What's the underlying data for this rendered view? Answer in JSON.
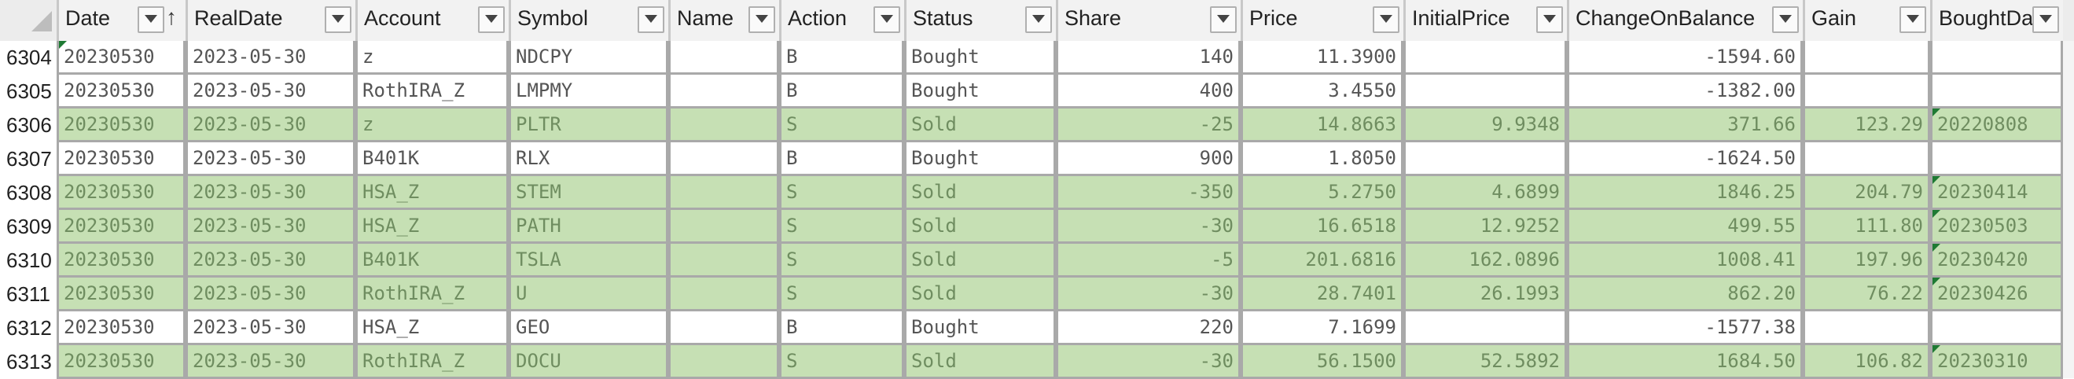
{
  "columns": [
    {
      "label": "Date",
      "sorted": "↑"
    },
    {
      "label": "RealDate"
    },
    {
      "label": "Account"
    },
    {
      "label": "Symbol"
    },
    {
      "label": "Name"
    },
    {
      "label": "Action"
    },
    {
      "label": "Status"
    },
    {
      "label": "Share"
    },
    {
      "label": "Price"
    },
    {
      "label": "InitialPrice"
    },
    {
      "label": "ChangeOnBalance"
    },
    {
      "label": "Gain"
    },
    {
      "label": "BoughtDat"
    }
  ],
  "rows": [
    {
      "rownum": "6304",
      "status_color": "bought",
      "cells": [
        "20230530",
        "2023-05-30",
        "z",
        "NDCPY",
        "",
        "B",
        "Bought",
        "140",
        "11.3900",
        "",
        "-1594.60",
        "",
        ""
      ]
    },
    {
      "rownum": "6305",
      "status_color": "bought",
      "cells": [
        "20230530",
        "2023-05-30",
        "RothIRA_Z",
        "LMPMY",
        "",
        "B",
        "Bought",
        "400",
        "3.4550",
        "",
        "-1382.00",
        "",
        ""
      ]
    },
    {
      "rownum": "6306",
      "status_color": "sold",
      "cells": [
        "20230530",
        "2023-05-30",
        "z",
        "PLTR",
        "",
        "S",
        "Sold",
        "-25",
        "14.8663",
        "9.9348",
        "371.66",
        "123.29",
        "20220808"
      ]
    },
    {
      "rownum": "6307",
      "status_color": "bought",
      "cells": [
        "20230530",
        "2023-05-30",
        "B401K",
        "RLX",
        "",
        "B",
        "Bought",
        "900",
        "1.8050",
        "",
        "-1624.50",
        "",
        ""
      ]
    },
    {
      "rownum": "6308",
      "status_color": "sold",
      "cells": [
        "20230530",
        "2023-05-30",
        "HSA_Z",
        "STEM",
        "",
        "S",
        "Sold",
        "-350",
        "5.2750",
        "4.6899",
        "1846.25",
        "204.79",
        "20230414"
      ]
    },
    {
      "rownum": "6309",
      "status_color": "sold",
      "cells": [
        "20230530",
        "2023-05-30",
        "HSA_Z",
        "PATH",
        "",
        "S",
        "Sold",
        "-30",
        "16.6518",
        "12.9252",
        "499.55",
        "111.80",
        "20230503"
      ]
    },
    {
      "rownum": "6310",
      "status_color": "sold",
      "cells": [
        "20230530",
        "2023-05-30",
        "B401K",
        "TSLA",
        "",
        "S",
        "Sold",
        "-5",
        "201.6816",
        "162.0896",
        "1008.41",
        "197.96",
        "20230420"
      ]
    },
    {
      "rownum": "6311",
      "status_color": "sold",
      "cells": [
        "20230530",
        "2023-05-30",
        "RothIRA_Z",
        "U",
        "",
        "S",
        "Sold",
        "-30",
        "28.7401",
        "26.1993",
        "862.20",
        "76.22",
        "20230426"
      ]
    },
    {
      "rownum": "6312",
      "status_color": "bought",
      "cells": [
        "20230530",
        "2023-05-30",
        "HSA_Z",
        "GEO",
        "",
        "B",
        "Bought",
        "220",
        "7.1699",
        "",
        "-1577.38",
        "",
        ""
      ]
    },
    {
      "rownum": "6313",
      "status_color": "sold",
      "cells": [
        "20230530",
        "2023-05-30",
        "RothIRA_Z",
        "DOCU",
        "",
        "S",
        "Sold",
        "-30",
        "56.1500",
        "52.5892",
        "1684.50",
        "106.82",
        "20230310"
      ]
    }
  ],
  "colors": {
    "sold_fill": "#c6e0b4",
    "bought_fill": "#ffffff",
    "error_flag": "#1e7a33",
    "grid": "#a9a9a9"
  }
}
